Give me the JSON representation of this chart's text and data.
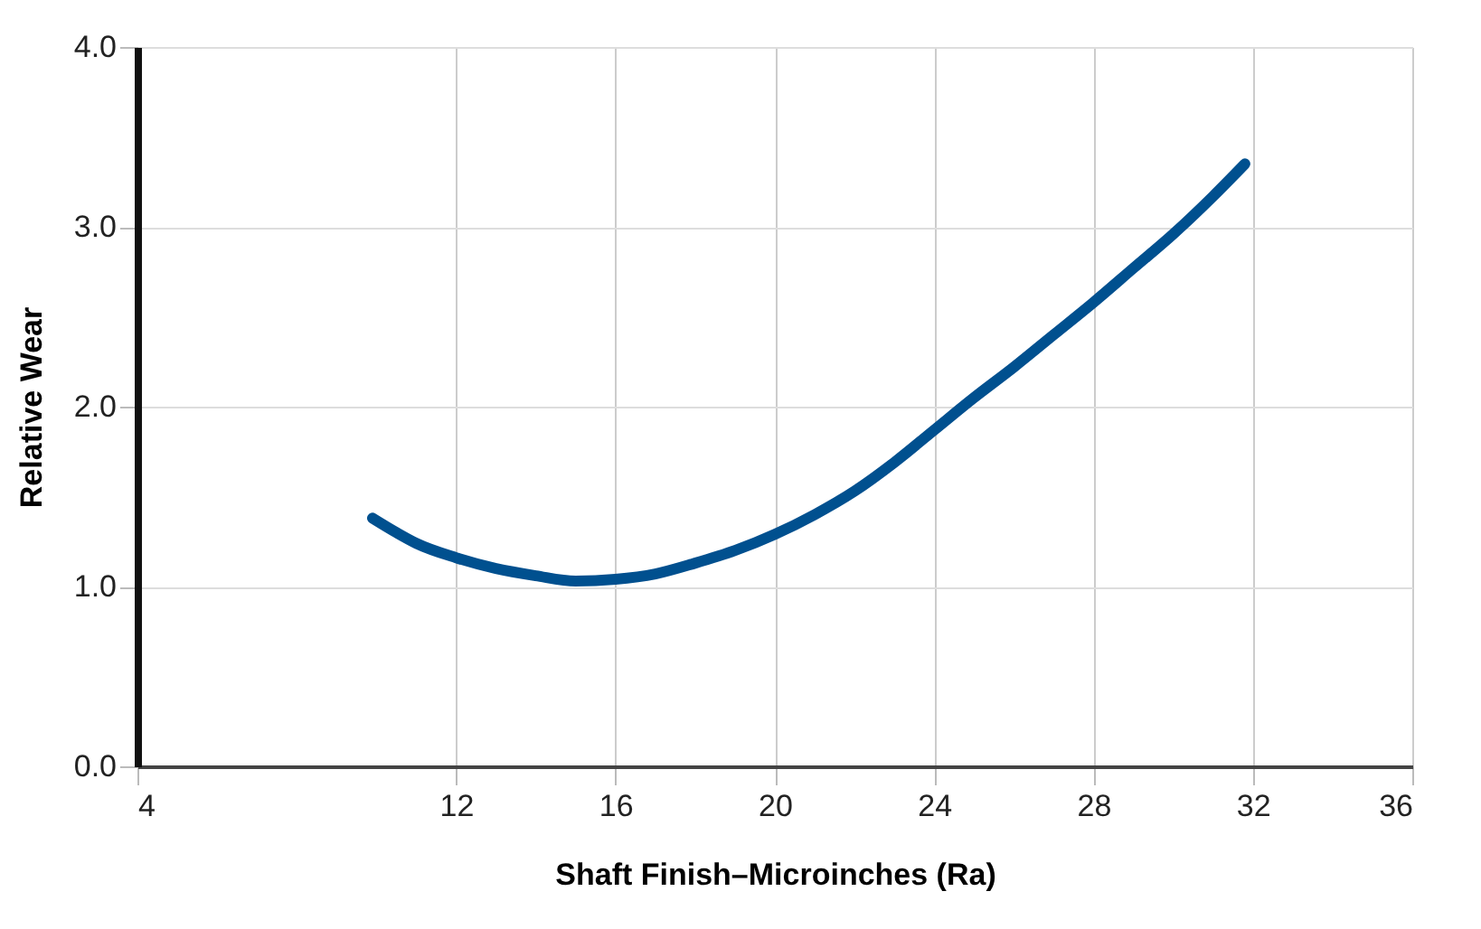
{
  "chart_data": {
    "type": "line",
    "xlabel": "Shaft Finish–Microinches (Ra)",
    "ylabel": "Relative Wear",
    "x": [
      9.9,
      10.5,
      11,
      12,
      13,
      14,
      15,
      16,
      17,
      18,
      19,
      20,
      21,
      22,
      23,
      24,
      25,
      26,
      27,
      28,
      29,
      30,
      31,
      31.8
    ],
    "series": [
      {
        "color": "#00508f",
        "values": [
          1.38,
          1.3,
          1.24,
          1.16,
          1.1,
          1.06,
          1.03,
          1.04,
          1.07,
          1.13,
          1.2,
          1.29,
          1.4,
          1.53,
          1.69,
          1.87,
          2.05,
          2.22,
          2.4,
          2.58,
          2.77,
          2.96,
          3.17,
          3.35
        ]
      }
    ],
    "xlim": [
      4,
      36
    ],
    "xticks": [
      4,
      12,
      16,
      20,
      24,
      28,
      32,
      36
    ],
    "ylim": [
      0,
      4
    ],
    "yticks": [
      {
        "value": 0,
        "label": "0.0"
      },
      {
        "value": 1,
        "label": "1.0"
      },
      {
        "value": 2,
        "label": "2.0"
      },
      {
        "value": 3,
        "label": "3.0"
      },
      {
        "value": 4,
        "label": "4.0"
      }
    ],
    "grid": true,
    "line_style": "solid",
    "marker": "none"
  }
}
